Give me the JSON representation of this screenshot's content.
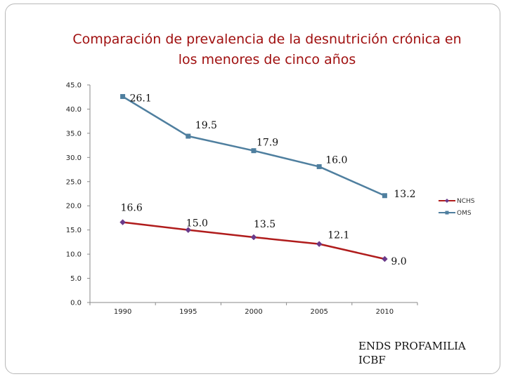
{
  "title_line1": "Comparación de prevalencia de la desnutrición crónica en",
  "title_line2": "los menores de cinco años",
  "source_line1": "ENDS PROFAMILIA",
  "source_line2": "ICBF",
  "chart_data": {
    "type": "line",
    "title": "Comparación de prevalencia de la desnutrición crónica en los menores de cinco años",
    "categories": [
      "1990",
      "1995",
      "2000",
      "2005",
      "2010"
    ],
    "y_ticks": [
      "0.0",
      "5.0",
      "10.0",
      "15.0",
      "20.0",
      "25.0",
      "30.0",
      "35.0",
      "40.0",
      "45.0"
    ],
    "ylim": [
      0,
      45
    ],
    "grid": false,
    "legend_position": "right",
    "series": [
      {
        "name": "NCHS",
        "color": "#b01c1c",
        "marker_color": "#6a3a8a",
        "marker": "diamond",
        "values": [
          16.6,
          15.0,
          13.5,
          12.1,
          9.0
        ],
        "labels": [
          "16.6",
          "15.0",
          "13.5",
          "12.1",
          "9.0"
        ]
      },
      {
        "name": "OMS",
        "color": "#4f7f9f",
        "marker_color": "#4f7f9f",
        "marker": "square",
        "values": [
          42.6,
          34.4,
          31.4,
          28.1,
          22.1
        ],
        "labels": [
          "26.1",
          "19.5",
          "17.9",
          "16.0",
          "13.2"
        ]
      }
    ]
  }
}
